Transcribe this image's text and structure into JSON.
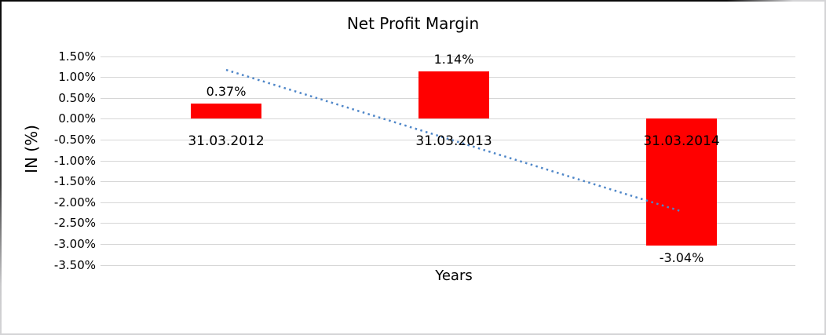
{
  "chart_data": {
    "type": "bar",
    "title": "Net Profit Margin",
    "xlabel": "Years",
    "ylabel": "IN (%)",
    "categories": [
      "31.03.2012",
      "31.03.2013",
      "31.03.2014"
    ],
    "values": [
      0.37,
      1.14,
      -3.04
    ],
    "value_labels": [
      "0.37%",
      "1.14%",
      "-3.04%"
    ],
    "value_unit": "percent",
    "ylim": [
      -3.5,
      1.5
    ],
    "ytick_values": [
      1.5,
      1.0,
      0.5,
      0.0,
      -0.5,
      -1.0,
      -1.5,
      -2.0,
      -2.5,
      -3.0,
      -3.5
    ],
    "ytick_labels": [
      "1.50%",
      "1.00%",
      "0.50%",
      "0.00%",
      "-0.50%",
      "-1.00%",
      "-1.50%",
      "-2.00%",
      "-2.50%",
      "-3.00%",
      "-3.50%"
    ],
    "grid": true,
    "legend": "none",
    "bar_color": "#ff0000",
    "grid_color": "#d6d6d6",
    "text_color": "#000000",
    "trendline": {
      "type": "linear",
      "style": "dotted",
      "color": "#4e86c8",
      "start_value": 1.17,
      "end_value": -2.22
    }
  }
}
